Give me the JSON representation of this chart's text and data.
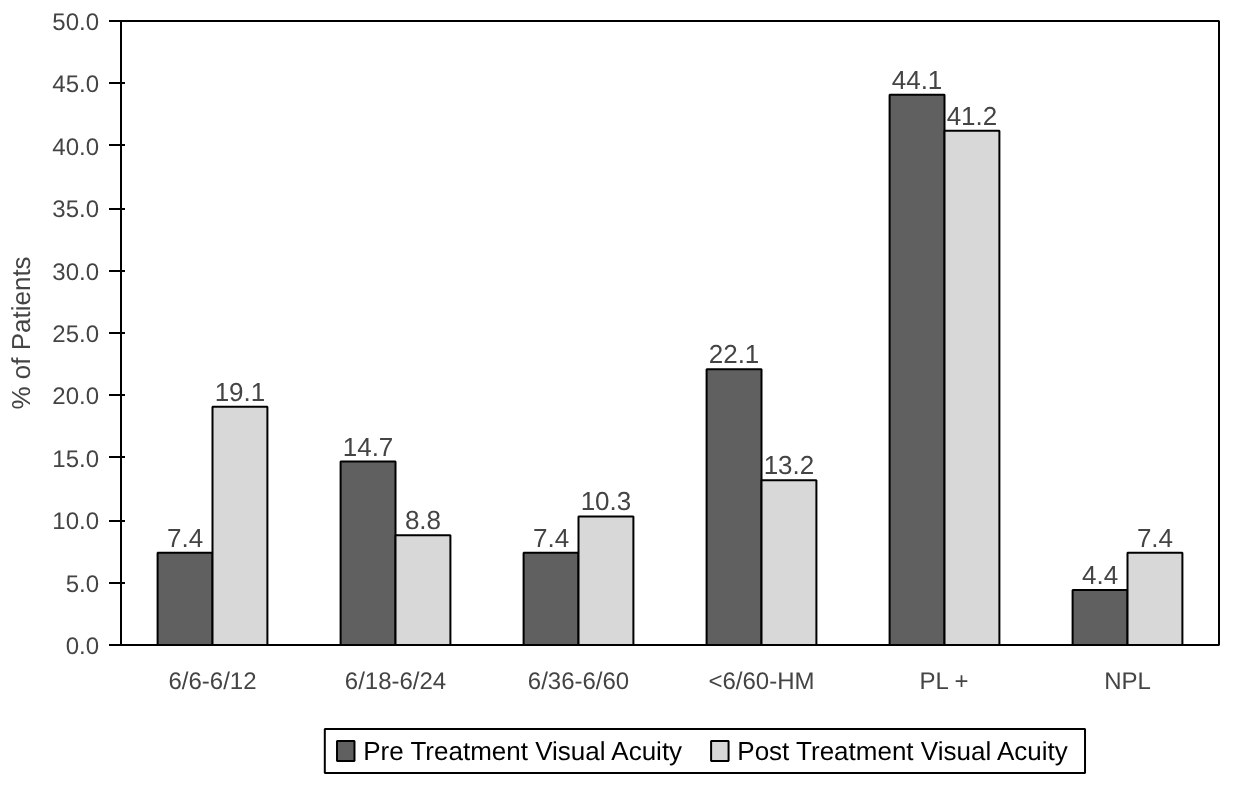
{
  "chart_data": {
    "type": "bar",
    "ylabel": "% of Patients",
    "categories": [
      "6/6-6/12",
      "6/18-6/24",
      "6/36-6/60",
      "<6/60-HM",
      "PL +",
      "NPL"
    ],
    "series": [
      {
        "name": "Pre Treatment Visual Acuity",
        "color": "#606060",
        "values": [
          7.4,
          14.7,
          7.4,
          22.1,
          44.1,
          4.4
        ]
      },
      {
        "name": "Post Treatment Visual Acuity",
        "color": "#d8d8d8",
        "values": [
          19.1,
          8.8,
          10.3,
          13.2,
          41.2,
          7.4
        ]
      }
    ],
    "ylim": [
      0,
      50
    ],
    "yticks": [
      {
        "value": 0,
        "label": "0.0"
      },
      {
        "value": 5,
        "label": "5.0"
      },
      {
        "value": 10,
        "label": "10.0"
      },
      {
        "value": 15,
        "label": "15.0"
      },
      {
        "value": 20,
        "label": "20.0"
      },
      {
        "value": 25,
        "label": "25.0"
      },
      {
        "value": 30,
        "label": "30.0"
      },
      {
        "value": 35,
        "label": "35.0"
      },
      {
        "value": 40,
        "label": "40.0"
      },
      {
        "value": 45,
        "label": "45.0"
      },
      {
        "value": 50,
        "label": "50.0"
      }
    ],
    "data_labels": true,
    "grid": false,
    "legend": "bottom"
  }
}
